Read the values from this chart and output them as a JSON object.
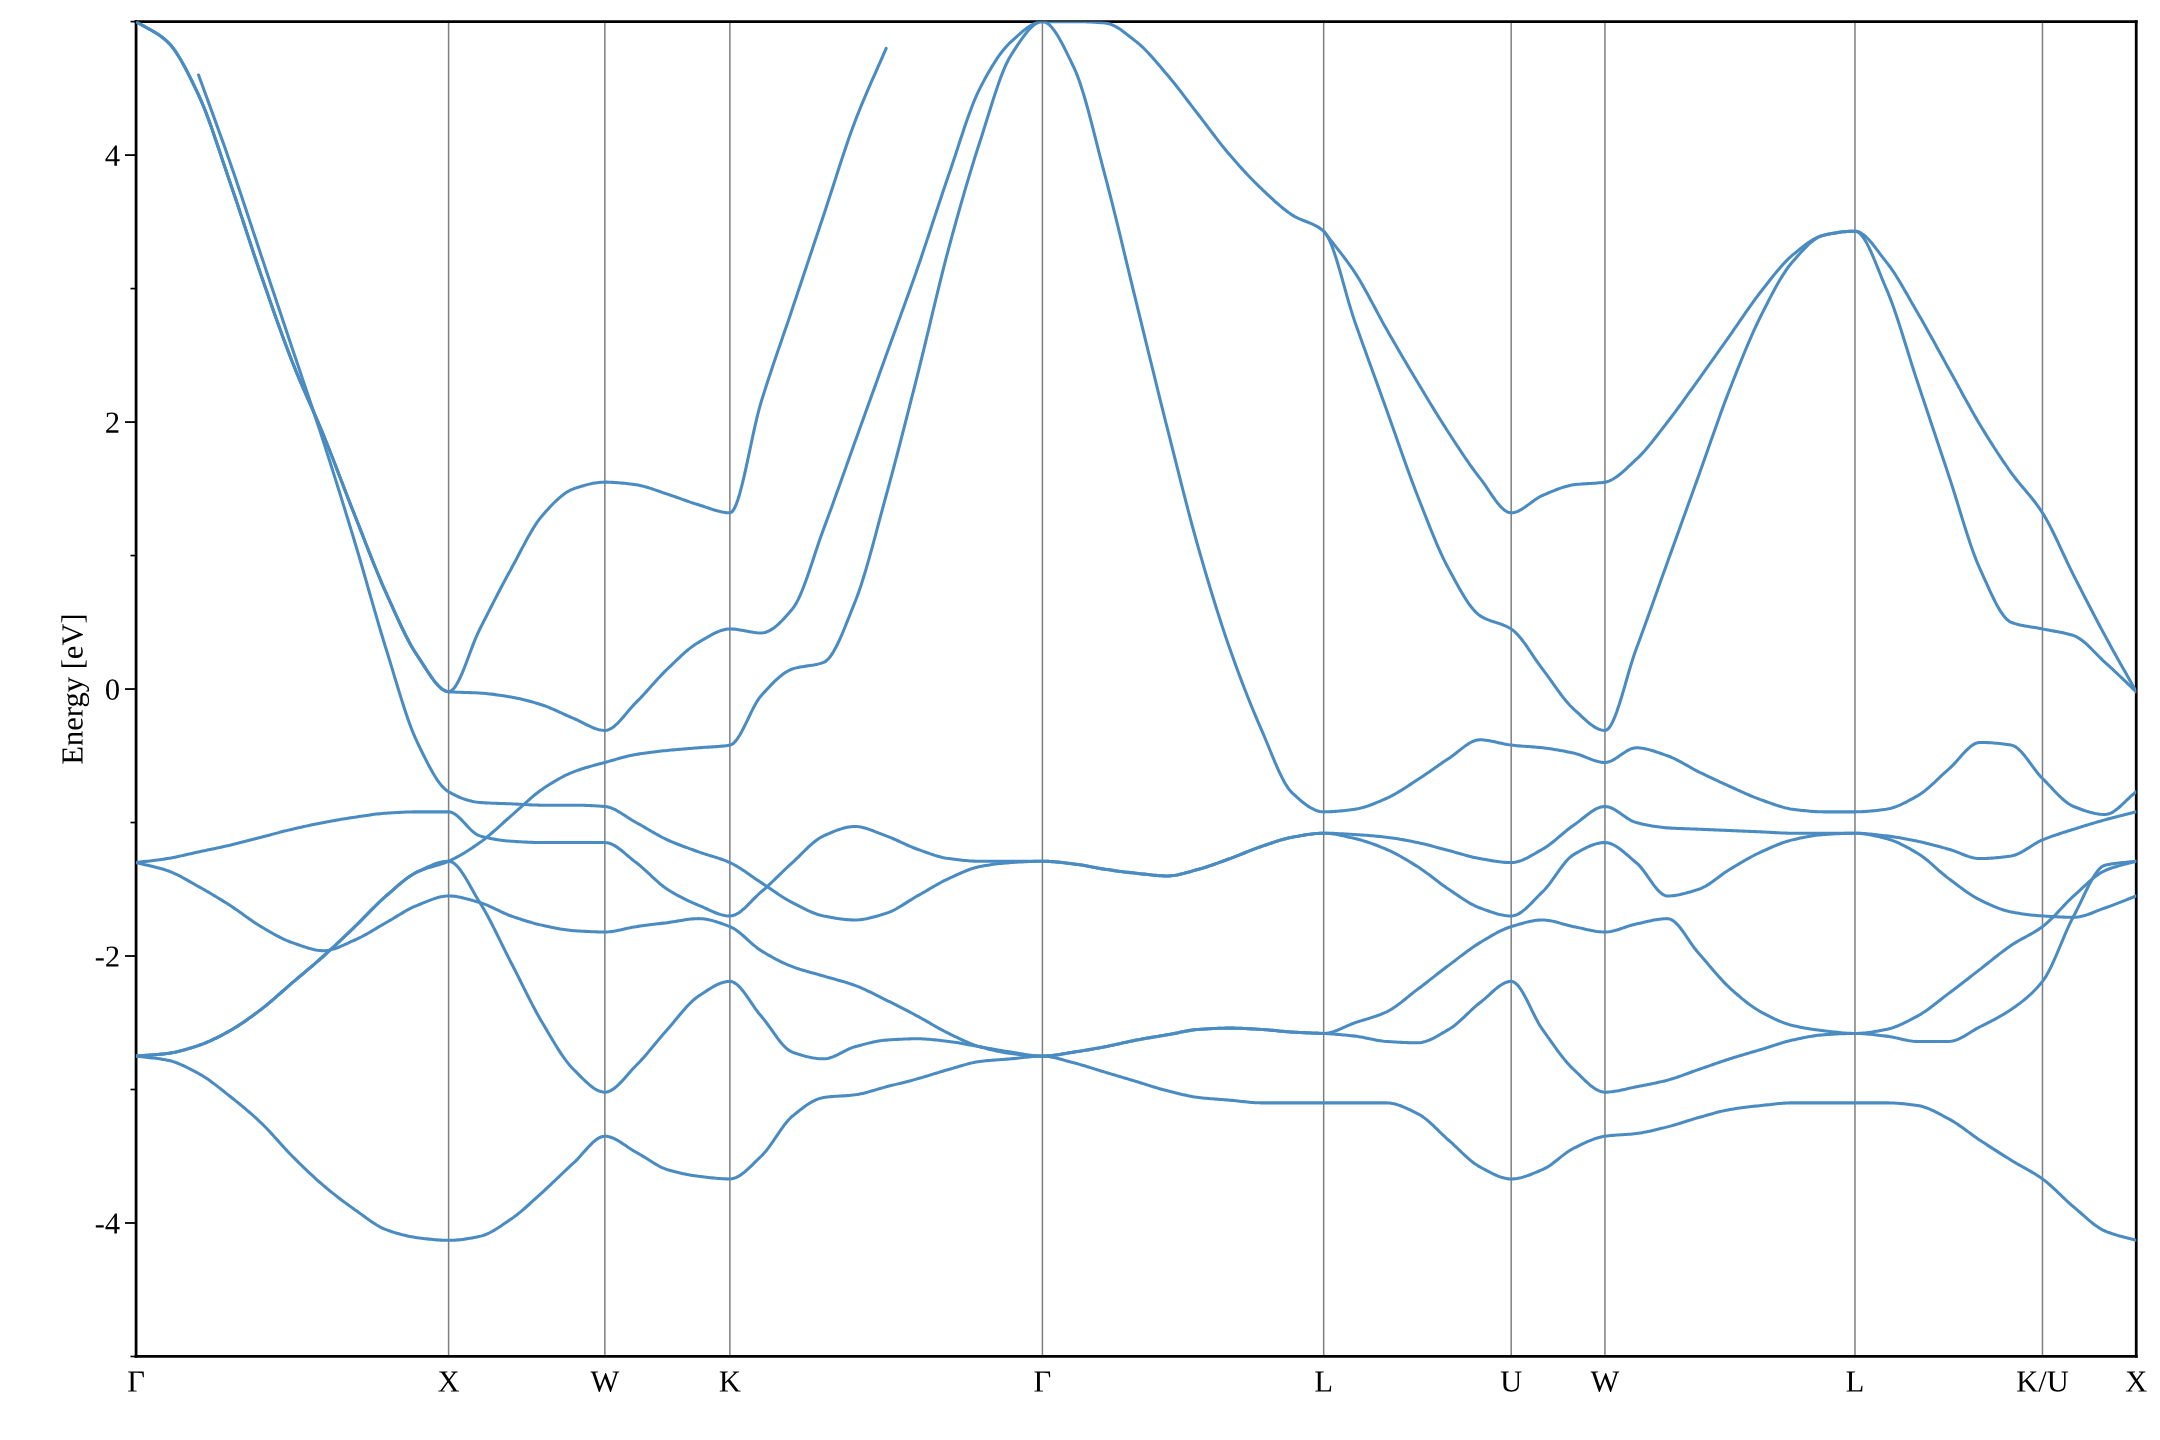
{
  "chart_data": {
    "type": "line",
    "ylabel": "Energy [eV]",
    "categories": [
      "Γ",
      null,
      null,
      null,
      null,
      null,
      null,
      null,
      null,
      null,
      "X",
      null,
      null,
      null,
      null,
      "W",
      null,
      null,
      null,
      "K",
      null,
      null,
      null,
      null,
      null,
      null,
      null,
      null,
      null,
      "Γ",
      null,
      null,
      null,
      null,
      null,
      null,
      null,
      null,
      "L",
      null,
      null,
      null,
      null,
      null,
      "U",
      null,
      null,
      "W",
      null,
      null,
      null,
      null,
      null,
      null,
      null,
      "L",
      null,
      null,
      null,
      null,
      null,
      "K/U",
      null,
      null,
      "X"
    ],
    "ylim": [
      -5,
      5
    ],
    "yticks": [
      {
        "value": -5,
        "label": null
      },
      -4,
      {
        "value": -3,
        "label": null
      },
      -2,
      {
        "value": -1,
        "label": null
      },
      0,
      {
        "value": 1,
        "label": null
      },
      2,
      {
        "value": 3,
        "label": null
      },
      4,
      {
        "value": 5,
        "label": null
      }
    ],
    "grid": "x",
    "marker": "none",
    "line_style": "solid",
    "series": [
      {
        "color": "#4a8cc2",
        "values": [
          -2.75,
          -2.78,
          -2.88,
          -3.05,
          -3.25,
          -3.5,
          -3.72,
          -3.9,
          -4.05,
          -4.11,
          -4.13,
          -4.1,
          -3.97,
          -3.77,
          -3.55,
          -3.35,
          -3.47,
          -3.6,
          -3.65,
          -3.67,
          -3.5,
          -3.2,
          -3.06,
          -3.04,
          -2.98,
          -2.92,
          -2.85,
          -2.79,
          -2.77,
          -2.75,
          -2.8,
          -2.87,
          -2.94,
          -3.01,
          -3.06,
          -3.08,
          -3.1,
          -3.1,
          -3.1,
          -3.1,
          -3.1,
          -3.18,
          -3.38,
          -3.58,
          -3.67,
          -3.6,
          -3.44,
          -3.35,
          -3.33,
          -3.28,
          -3.21,
          -3.15,
          -3.12,
          -3.1,
          -3.1,
          -3.1,
          -3.1,
          -3.12,
          -3.22,
          -3.38,
          -3.53,
          -3.67,
          -3.88,
          -4.06,
          -4.13
        ]
      },
      {
        "color": "#4a8cc2",
        "values": [
          -2.75,
          -2.73,
          -2.67,
          -2.56,
          -2.4,
          -2.2,
          -2.0,
          -1.78,
          -1.55,
          -1.37,
          -1.29,
          -1.6,
          -2.05,
          -2.5,
          -2.85,
          -3.02,
          -2.82,
          -2.55,
          -2.3,
          -2.19,
          -2.45,
          -2.72,
          -2.77,
          -2.68,
          -2.63,
          -2.62,
          -2.64,
          -2.68,
          -2.72,
          -2.75,
          -2.72,
          -2.68,
          -2.63,
          -2.59,
          -2.55,
          -2.54,
          -2.55,
          -2.57,
          -2.58,
          -2.6,
          -2.64,
          -2.65,
          -2.55,
          -2.35,
          -2.19,
          -2.55,
          -2.85,
          -3.02,
          -2.98,
          -2.93,
          -2.85,
          -2.77,
          -2.7,
          -2.63,
          -2.59,
          -2.58,
          -2.6,
          -2.64,
          -2.64,
          -2.53,
          -2.4,
          -2.19,
          -1.7,
          -1.32,
          -1.29
        ]
      },
      {
        "color": "#4a8cc2",
        "values": [
          -2.75,
          -2.73,
          -2.67,
          -2.56,
          -2.4,
          -2.2,
          -2.0,
          -1.78,
          -1.55,
          -1.37,
          -1.29,
          -1.15,
          -0.95,
          -0.75,
          -0.62,
          -0.55,
          -0.49,
          -0.46,
          -0.44,
          -0.42,
          -0.05,
          0.15,
          0.2,
          0.65,
          1.45,
          2.35,
          3.3,
          4.1,
          4.75,
          5.0,
          4.66,
          3.85,
          2.9,
          1.95,
          1.05,
          0.3,
          -0.3,
          -0.78,
          -0.92,
          -0.9,
          -0.82,
          -0.68,
          -0.52,
          -0.38,
          -0.42,
          -0.44,
          -0.48,
          -0.55,
          -0.44,
          -0.5,
          -0.62,
          -0.73,
          -0.83,
          -0.9,
          -0.92,
          -0.92,
          -0.9,
          -0.8,
          -0.6,
          -0.4,
          -0.42,
          -0.67,
          -0.88,
          -0.94,
          -0.77
        ]
      },
      {
        "color": "#4a8cc2",
        "values": [
          -1.3,
          -1.36,
          -1.48,
          -1.62,
          -1.78,
          -1.9,
          -1.96,
          -1.88,
          -1.75,
          -1.62,
          -1.55,
          -1.6,
          -1.7,
          -1.77,
          -1.81,
          -1.82,
          -1.78,
          -1.75,
          -1.72,
          -1.78,
          -1.96,
          -2.08,
          -2.15,
          -2.22,
          -2.33,
          -2.45,
          -2.58,
          -2.68,
          -2.73,
          -2.75,
          -2.72,
          -2.68,
          -2.63,
          -2.59,
          -2.55,
          -2.54,
          -2.55,
          -2.57,
          -2.58,
          -2.5,
          -2.42,
          -2.25,
          -2.07,
          -1.9,
          -1.78,
          -1.73,
          -1.78,
          -1.82,
          -1.76,
          -1.72,
          -1.98,
          -2.24,
          -2.42,
          -2.52,
          -2.56,
          -2.58,
          -2.55,
          -2.45,
          -2.28,
          -2.1,
          -1.92,
          -1.78,
          -1.55,
          -1.36,
          -1.29
        ]
      },
      {
        "color": "#4a8cc2",
        "values": [
          -1.3,
          -1.27,
          -1.22,
          -1.17,
          -1.11,
          -1.05,
          -1.0,
          -0.96,
          -0.93,
          -0.92,
          -0.92,
          -1.1,
          -1.14,
          -1.15,
          -1.15,
          -1.15,
          -1.3,
          -1.5,
          -1.62,
          -1.7,
          -1.52,
          -1.3,
          -1.1,
          -1.03,
          -1.1,
          -1.2,
          -1.27,
          -1.29,
          -1.29,
          -1.29,
          -1.31,
          -1.35,
          -1.38,
          -1.4,
          -1.35,
          -1.27,
          -1.18,
          -1.11,
          -1.08,
          -1.09,
          -1.11,
          -1.15,
          -1.21,
          -1.27,
          -1.3,
          -1.2,
          -1.02,
          -0.88,
          -1.0,
          -1.04,
          -1.05,
          -1.06,
          -1.07,
          -1.08,
          -1.08,
          -1.08,
          -1.1,
          -1.14,
          -1.2,
          -1.27,
          -1.25,
          -1.13,
          -1.05,
          -0.98,
          -0.92
        ]
      },
      {
        "color": "#4a8cc2",
        "values": [
          null,
          null,
          4.6,
          3.95,
          3.25,
          2.55,
          1.85,
          1.1,
          0.3,
          -0.4,
          -0.77,
          -0.85,
          -0.86,
          -0.87,
          -0.87,
          -0.88,
          -1.0,
          -1.13,
          -1.22,
          -1.3,
          -1.45,
          -1.6,
          -1.7,
          -1.73,
          -1.68,
          -1.55,
          -1.42,
          -1.33,
          -1.3,
          -1.29,
          -1.31,
          -1.35,
          -1.38,
          -1.4,
          -1.35,
          -1.27,
          -1.18,
          -1.11,
          -1.08,
          -1.12,
          -1.2,
          -1.33,
          -1.5,
          -1.64,
          -1.7,
          -1.52,
          -1.24,
          -1.15,
          -1.3,
          -1.55,
          -1.5,
          -1.35,
          -1.22,
          -1.13,
          -1.09,
          -1.08,
          -1.12,
          -1.23,
          -1.42,
          -1.58,
          -1.67,
          -1.7,
          -1.71,
          -1.64,
          -1.55
        ]
      },
      {
        "color": "#4a8cc2",
        "values": [
          5.0,
          4.85,
          4.45,
          3.8,
          3.1,
          2.45,
          1.9,
          1.3,
          0.72,
          0.25,
          -0.02,
          -0.03,
          -0.06,
          -0.12,
          -0.22,
          -0.31,
          -0.1,
          0.15,
          0.35,
          0.45,
          0.42,
          0.6,
          1.2,
          1.85,
          2.5,
          3.15,
          3.85,
          4.5,
          4.85,
          5.0,
          5.0,
          4.99,
          4.85,
          4.6,
          4.3,
          4.0,
          3.75,
          3.55,
          3.43,
          2.75,
          2.1,
          1.45,
          0.9,
          0.55,
          0.45,
          0.15,
          -0.15,
          -0.31,
          0.3,
          0.95,
          1.6,
          2.25,
          2.8,
          3.2,
          3.4,
          3.43,
          3.0,
          2.3,
          1.6,
          0.9,
          0.5,
          0.45,
          0.4,
          0.2,
          -0.02
        ]
      },
      {
        "color": "#4a8cc2",
        "values": [
          5.0,
          4.85,
          4.45,
          3.8,
          3.1,
          2.45,
          1.9,
          1.3,
          0.72,
          0.25,
          -0.02,
          0.45,
          0.9,
          1.3,
          1.5,
          1.55,
          1.53,
          1.46,
          1.38,
          1.32,
          2.15,
          2.85,
          3.55,
          4.25,
          4.8,
          null,
          null,
          null,
          null,
          null,
          null,
          null,
          null,
          null,
          null,
          null,
          null,
          null,
          3.43,
          3.12,
          2.7,
          2.3,
          1.92,
          1.58,
          1.32,
          1.45,
          1.53,
          1.55,
          1.72,
          2.0,
          2.32,
          2.65,
          2.98,
          3.25,
          3.4,
          3.43,
          3.2,
          2.82,
          2.4,
          1.98,
          1.62,
          1.32,
          0.85,
          0.4,
          -0.02
        ]
      }
    ]
  }
}
